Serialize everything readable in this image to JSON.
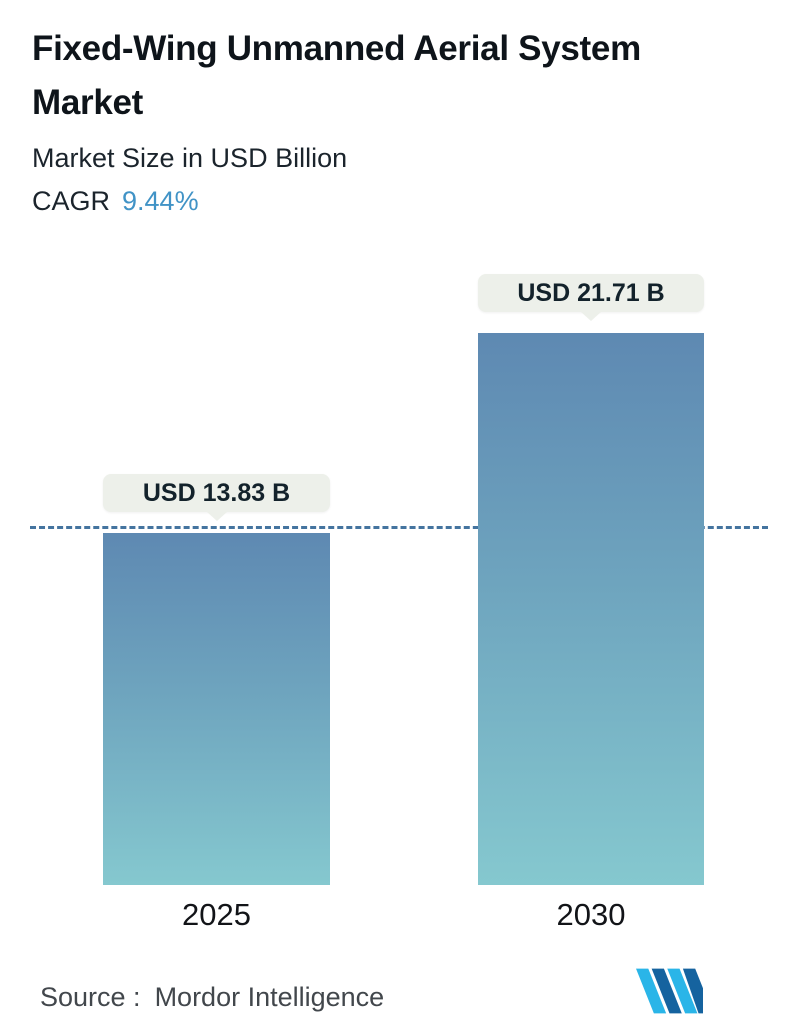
{
  "header": {
    "title": "Fixed-Wing Unmanned Aerial System Market",
    "subtitle": "Market Size in USD Billion",
    "cagr_label": "CAGR",
    "cagr_value": "9.44%"
  },
  "chart_data": {
    "type": "bar",
    "title": "Fixed-Wing Unmanned Aerial System Market",
    "subtitle": "Market Size in USD Billion",
    "unit": "USD Billion",
    "cagr": "9.44%",
    "categories": [
      "2025",
      "2030"
    ],
    "values": [
      13.83,
      21.71
    ],
    "value_labels": [
      "USD 13.83 B",
      "USD 21.71 B"
    ],
    "ylim": [
      0,
      24
    ],
    "grid": false,
    "legend": false,
    "annotations": [
      "horizontal dashed reference line at 2025 value (13.83)"
    ]
  },
  "footer": {
    "source_label": "Source :",
    "source_value": "Mordor Intelligence",
    "logo": "mordor-intelligence-logo"
  },
  "colors": {
    "accent_blue": "#4193c6",
    "bar_gradient_top": "#5e89b2",
    "bar_gradient_bottom": "#85c8cf",
    "dashed_line": "#44749f",
    "bubble_bg": "#edf0ea",
    "title_text": "#0e141a",
    "source_text": "#42474c",
    "logo_cyan": "#2ab5e8",
    "logo_navy": "#15639f"
  }
}
